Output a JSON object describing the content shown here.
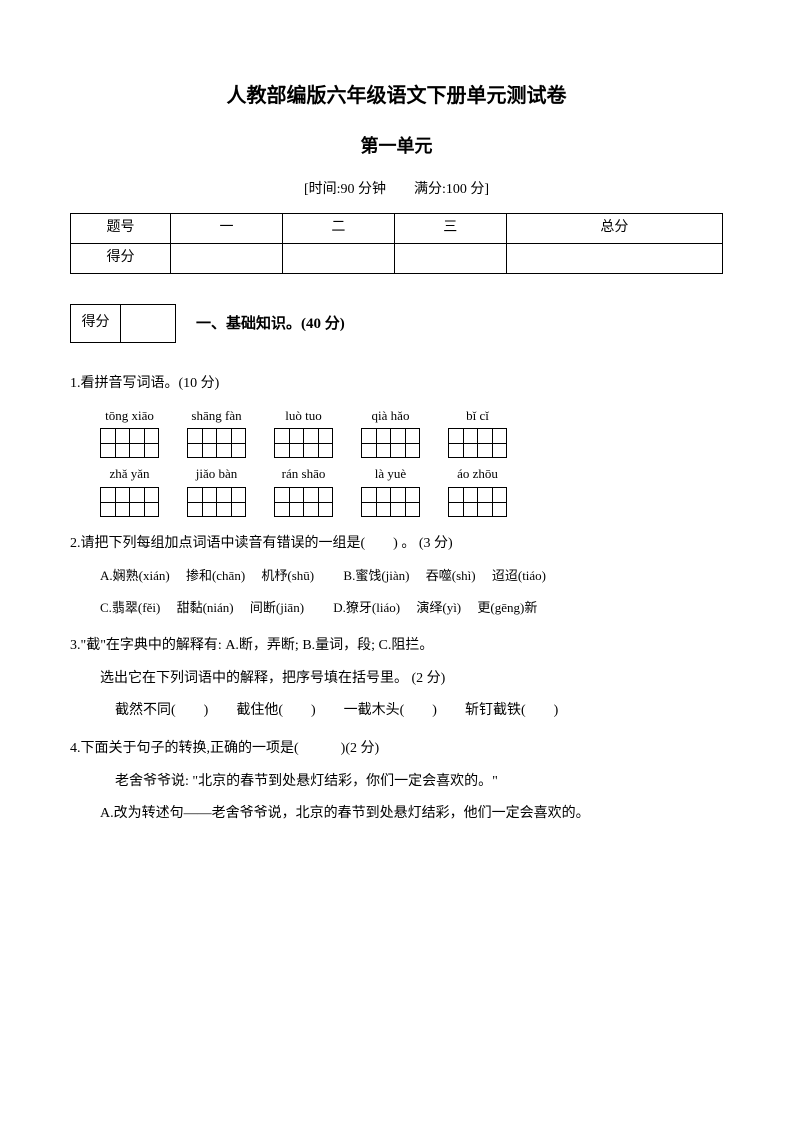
{
  "title1": "人教部编版六年级语文下册单元测试卷",
  "title2": "第一单元",
  "meta": "[时间:90 分钟　　满分:100 分]",
  "scoreTable": {
    "headers": [
      "题号",
      "一",
      "二",
      "三",
      "总分"
    ],
    "row2label": "得分"
  },
  "section1": {
    "smallLabel": "得分",
    "title": "一、基础知识。(40 分)"
  },
  "q1": {
    "text": "1.看拼音写词语。(10 分)",
    "row1": [
      {
        "py": "tōng xiāo",
        "n": 2
      },
      {
        "py": "shāng fàn",
        "n": 2
      },
      {
        "py": "luò tuo",
        "n": 2
      },
      {
        "py": "qià hǎo",
        "n": 2
      },
      {
        "py": "bǐ cǐ",
        "n": 2
      }
    ],
    "row2": [
      {
        "py": "zhǎ yǎn",
        "n": 2
      },
      {
        "py": "jiǎo bàn",
        "n": 2
      },
      {
        "py": "rán shāo",
        "n": 2
      },
      {
        "py": "là yuè",
        "n": 2
      },
      {
        "py": "áo zhōu",
        "n": 2
      }
    ]
  },
  "q2": {
    "text": "2.请把下列每组加点词语中读音有错误的一组是(　　) 。 (3 分)",
    "optA_1": "A.娴熟(xián)",
    "optA_2": "掺和(chān)",
    "optA_3": "机杼(shū)",
    "optB_1": "B.蜜饯(jiàn)",
    "optB_2": "吞噬(shì)",
    "optB_3": "迢迢(tiáo)",
    "optC_1": "C.翡翠(fěi)",
    "optC_2": "甜黏(nián)",
    "optC_3": "间断(jiān)",
    "optD_1": "D.獠牙(liáo)",
    "optD_2": "演绎(yì)",
    "optD_3": "更(gēng)新"
  },
  "q3": {
    "line1": "3.\"截\"在字典中的解释有: A.断，弄断; B.量词，段; C.阻拦。",
    "line2": "选出它在下列词语中的解释，把序号填在括号里。 (2 分)",
    "line3": "截然不同(　　)　　截住他(　　)　　一截木头(　　)　　斩钉截铁(　　)"
  },
  "q4": {
    "text": "4.下面关于句子的转换,正确的一项是(　　　)(2 分)",
    "quote": "老舍爷爷说: \"北京的春节到处悬灯结彩，你们一定会喜欢的。\"",
    "optA": "A.改为转述句——老舍爷爷说，北京的春节到处悬灯结彩，他们一定会喜欢的。"
  }
}
